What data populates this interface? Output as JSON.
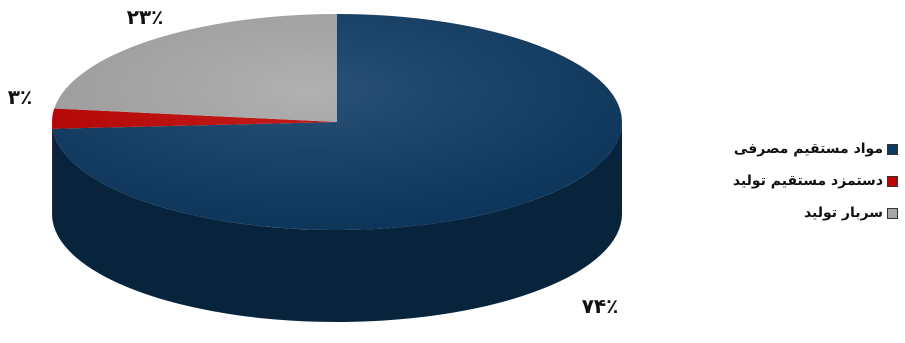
{
  "chart_data": {
    "type": "pie",
    "title": "",
    "categories": [
      "مواد مستقیم مصرفی",
      "دستمزد مستقیم تولید",
      "سربار تولید"
    ],
    "values": [
      74,
      3,
      23
    ],
    "labels": [
      "۷۴٪",
      "۳٪",
      "۲۳٪"
    ],
    "colors": [
      "#0d3a63",
      "#c00000",
      "#a6a6a6"
    ],
    "legend_position": "right",
    "style": "3d"
  },
  "legend": {
    "items": [
      {
        "label": "مواد مستقیم مصرفی",
        "color": "#0d3a63"
      },
      {
        "label": "دستمزد مستقیم تولید",
        "color": "#c00000"
      },
      {
        "label": "سربار تولید",
        "color": "#a6a6a6"
      }
    ]
  }
}
